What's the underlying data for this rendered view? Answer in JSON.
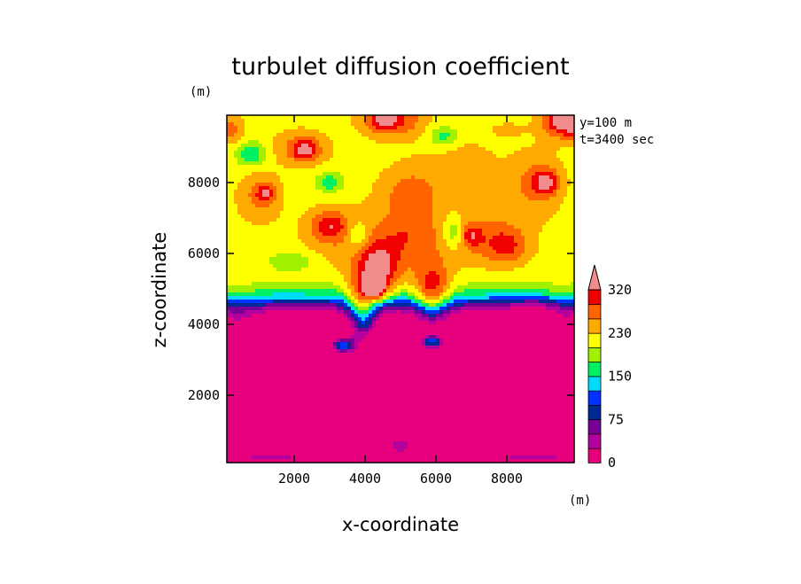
{
  "chart_data": {
    "type": "heatmap",
    "title": "turbulet diffusion coefficient",
    "xlabel": "x-coordinate",
    "ylabel": "z-coordinate",
    "x_unit": "(m)",
    "y_unit": "(m)",
    "annotations": [
      "y=100 m",
      "t=3400 sec"
    ],
    "xlim": [
      100,
      9900
    ],
    "ylim": [
      100,
      9900
    ],
    "x_ticks": [
      {
        "value": 2000,
        "label": "2000"
      },
      {
        "value": 4000,
        "label": "4000"
      },
      {
        "value": 6000,
        "label": "6000"
      },
      {
        "value": 8000,
        "label": "8000"
      }
    ],
    "y_ticks": [
      {
        "value": 2000,
        "label": "2000"
      },
      {
        "value": 4000,
        "label": "4000"
      },
      {
        "value": 6000,
        "label": "6000"
      },
      {
        "value": 8000,
        "label": "8000"
      }
    ],
    "colorbar": {
      "bands": [
        {
          "lo": 0,
          "hi": 25,
          "color": "#e6007d"
        },
        {
          "lo": 25,
          "hi": 50,
          "color": "#b4009c"
        },
        {
          "lo": 50,
          "hi": 75,
          "color": "#780096"
        },
        {
          "lo": 75,
          "hi": 100,
          "color": "#002896"
        },
        {
          "lo": 100,
          "hi": 125,
          "color": "#0032ff"
        },
        {
          "lo": 125,
          "hi": 150,
          "color": "#00dcff"
        },
        {
          "lo": 150,
          "hi": 175,
          "color": "#00f064"
        },
        {
          "lo": 175,
          "hi": 200,
          "color": "#a0f000"
        },
        {
          "lo": 200,
          "hi": 230,
          "color": "#ffff00"
        },
        {
          "lo": 230,
          "hi": 260,
          "color": "#ffaa00"
        },
        {
          "lo": 260,
          "hi": 290,
          "color": "#ff6400"
        },
        {
          "lo": 290,
          "hi": 320,
          "color": "#f00000"
        }
      ],
      "over_color": "#f08c8c",
      "tick_labels": [
        {
          "value": 0,
          "label": "0"
        },
        {
          "value": 75,
          "label": "75"
        },
        {
          "value": 150,
          "label": "150"
        },
        {
          "value": 230,
          "label": "230"
        },
        {
          "value": 320,
          "label": "320"
        }
      ]
    },
    "field_features": [
      {
        "x": 5000,
        "z": 1500,
        "sx": 6000,
        "sz": 1800,
        "v": -25
      },
      {
        "x": 5000,
        "z": 3000,
        "sx": 5000,
        "sz": 1200,
        "v": -20
      },
      {
        "x": 5000,
        "z": 600,
        "sx": 900,
        "sz": 500,
        "v": 90
      },
      {
        "x": 2200,
        "z": 2000,
        "sx": 1200,
        "sz": 600,
        "v": 30
      },
      {
        "x": 7800,
        "z": 2000,
        "sx": 1200,
        "sz": 600,
        "v": 30
      },
      {
        "x": 400,
        "z": 2800,
        "sx": 600,
        "sz": 1800,
        "v": 70
      },
      {
        "x": 9600,
        "z": 2600,
        "sx": 600,
        "sz": 1800,
        "v": 70
      },
      {
        "x": 1500,
        "z": 250,
        "sx": 1800,
        "sz": 300,
        "v": 80
      },
      {
        "x": 8500,
        "z": 250,
        "sx": 1800,
        "sz": 300,
        "v": 80
      },
      {
        "x": 5000,
        "z": 7600,
        "sx": 6000,
        "sz": 2600,
        "v": 10
      },
      {
        "x": 3400,
        "z": 3400,
        "sx": 400,
        "sz": 250,
        "v": 170
      },
      {
        "x": 3900,
        "z": 4600,
        "sx": 400,
        "sz": 900,
        "v": 115
      },
      {
        "x": 4400,
        "z": 5500,
        "sx": 500,
        "sz": 800,
        "v": 120
      },
      {
        "x": 4300,
        "z": 5000,
        "sx": 280,
        "sz": 280,
        "v": 120
      },
      {
        "x": 4000,
        "z": 4000,
        "sx": 350,
        "sz": 500,
        "v": 60
      },
      {
        "x": 5900,
        "z": 4800,
        "sx": 500,
        "sz": 900,
        "v": 120
      },
      {
        "x": 5900,
        "z": 3500,
        "sx": 350,
        "sz": 220,
        "v": 160
      },
      {
        "x": 5300,
        "z": 7000,
        "sx": 900,
        "sz": 1400,
        "v": 40
      },
      {
        "x": 5100,
        "z": 6300,
        "sx": 500,
        "sz": 900,
        "v": 25
      },
      {
        "x": 5300,
        "z": 7800,
        "sx": 700,
        "sz": 500,
        "v": 30
      },
      {
        "x": 3500,
        "z": 6300,
        "sx": 1400,
        "sz": 900,
        "v": 35
      },
      {
        "x": 3000,
        "z": 6800,
        "sx": 500,
        "sz": 400,
        "v": 80
      },
      {
        "x": 7200,
        "z": 6500,
        "sx": 1300,
        "sz": 900,
        "v": 45
      },
      {
        "x": 8000,
        "z": 6200,
        "sx": 600,
        "sz": 500,
        "v": 65
      },
      {
        "x": 7000,
        "z": 6500,
        "sx": 300,
        "sz": 300,
        "v": 60
      },
      {
        "x": 1000,
        "z": 7600,
        "sx": 600,
        "sz": 700,
        "v": 50
      },
      {
        "x": 1200,
        "z": 7700,
        "sx": 250,
        "sz": 250,
        "v": 70
      },
      {
        "x": 8800,
        "z": 8000,
        "sx": 800,
        "sz": 900,
        "v": 50
      },
      {
        "x": 9100,
        "z": 8000,
        "sx": 350,
        "sz": 350,
        "v": 90
      },
      {
        "x": 2200,
        "z": 9000,
        "sx": 800,
        "sz": 500,
        "v": 50
      },
      {
        "x": 2300,
        "z": 8900,
        "sx": 350,
        "sz": 300,
        "v": 80
      },
      {
        "x": 6800,
        "z": 8500,
        "sx": 900,
        "sz": 700,
        "v": 30
      },
      {
        "x": 4800,
        "z": 9800,
        "sx": 900,
        "sz": 500,
        "v": 80
      },
      {
        "x": 4500,
        "z": 9800,
        "sx": 400,
        "sz": 300,
        "v": 60
      },
      {
        "x": 9800,
        "z": 9800,
        "sx": 700,
        "sz": 500,
        "v": 180
      },
      {
        "x": 200,
        "z": 9500,
        "sx": 400,
        "sz": 400,
        "v": 60
      },
      {
        "x": 8000,
        "z": 9500,
        "sx": 600,
        "sz": 300,
        "v": 20
      },
      {
        "x": 3000,
        "z": 8000,
        "sx": 400,
        "sz": 300,
        "v": -60
      },
      {
        "x": 6200,
        "z": 9300,
        "sx": 400,
        "sz": 300,
        "v": -60
      },
      {
        "x": 800,
        "z": 8800,
        "sx": 400,
        "sz": 350,
        "v": -70
      },
      {
        "x": 6500,
        "z": 6600,
        "sx": 300,
        "sz": 500,
        "v": -70
      },
      {
        "x": 3800,
        "z": 6500,
        "sx": 300,
        "sz": 350,
        "v": -60
      },
      {
        "x": 2000,
        "z": 5800,
        "sx": 700,
        "sz": 300,
        "v": -40
      },
      {
        "x": 8800,
        "z": 4500,
        "sx": 800,
        "sz": 250,
        "v": -40
      }
    ]
  }
}
